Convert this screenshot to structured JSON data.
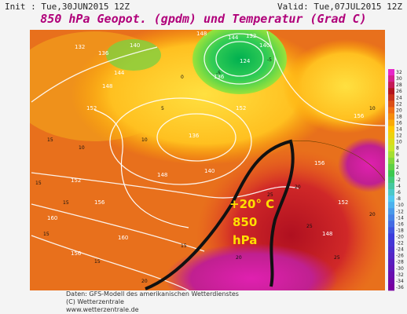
{
  "header": {
    "init": "Init : Tue,30JUN2015 12Z",
    "valid": "Valid: Tue,07JUL2015 12Z",
    "title": "850 hPa Geopot. (gpdm) und Temperatur (Grad C)"
  },
  "annotation": {
    "lines": [
      "+20° C",
      "850",
      "hPa"
    ]
  },
  "footer": {
    "lines": [
      "Daten: GFS-Modell des amerikanischen Wetterdienstes",
      "(C) Wetterzentrale",
      "www.wetterzentrale.de"
    ]
  },
  "colorbar": {
    "values": [
      32,
      30,
      28,
      26,
      24,
      22,
      20,
      18,
      16,
      14,
      12,
      10,
      8,
      6,
      4,
      2,
      0,
      -2,
      -4,
      -6,
      -8,
      -10,
      -12,
      -14,
      -16,
      -18,
      -20,
      -22,
      -24,
      -26,
      -28,
      -30,
      -32,
      -34,
      -36
    ]
  },
  "height_labels": [
    132,
    136,
    140,
    144,
    148,
    152,
    148,
    144,
    140,
    136,
    132,
    124,
    136,
    140,
    148,
    152,
    156,
    152,
    156,
    160,
    160,
    156,
    152,
    148,
    156
  ],
  "temp_labels": [
    15,
    15,
    10,
    5,
    0,
    -5,
    -5,
    10,
    15,
    20,
    20,
    25,
    25,
    20,
    15,
    15,
    20,
    25,
    10,
    15
  ]
}
